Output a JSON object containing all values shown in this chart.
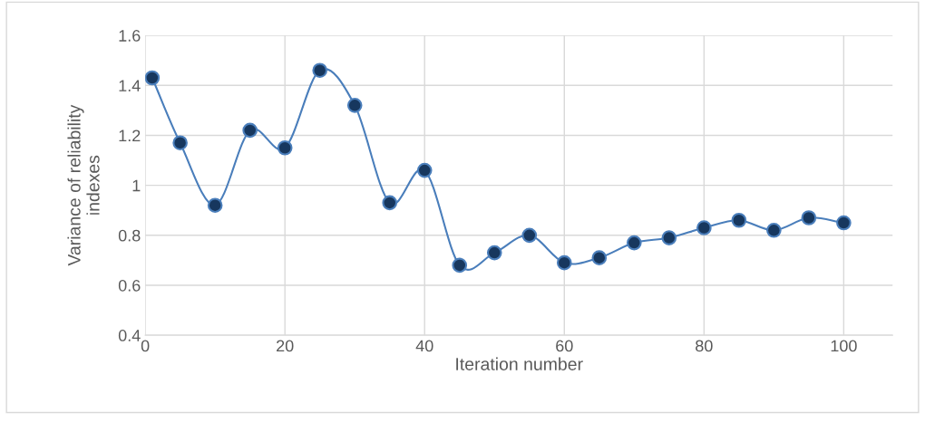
{
  "chart_data": {
    "type": "line",
    "xlabel": "Iteration number",
    "ylabel": "Variance of reliability\nindexes",
    "x": [
      1,
      5,
      10,
      15,
      20,
      25,
      30,
      35,
      40,
      45,
      50,
      55,
      60,
      65,
      70,
      75,
      80,
      85,
      90,
      95,
      100
    ],
    "series": [
      {
        "color": "#4a7ebb",
        "values": [
          1.43,
          1.17,
          0.92,
          1.22,
          1.15,
          1.46,
          1.32,
          0.93,
          1.06,
          0.68,
          0.73,
          0.8,
          0.69,
          0.71,
          0.77,
          0.79,
          0.83,
          0.86,
          0.82,
          0.87,
          0.85
        ]
      }
    ],
    "xlim": [
      0,
      107
    ],
    "xticks": [
      0,
      20,
      40,
      60,
      80,
      100
    ],
    "ylim": [
      0.4,
      1.6
    ],
    "yticks": [
      0.4,
      0.6,
      0.8,
      1,
      1.2,
      1.4,
      1.6
    ],
    "grid": true,
    "marker": "circle",
    "line_style": "solid"
  }
}
